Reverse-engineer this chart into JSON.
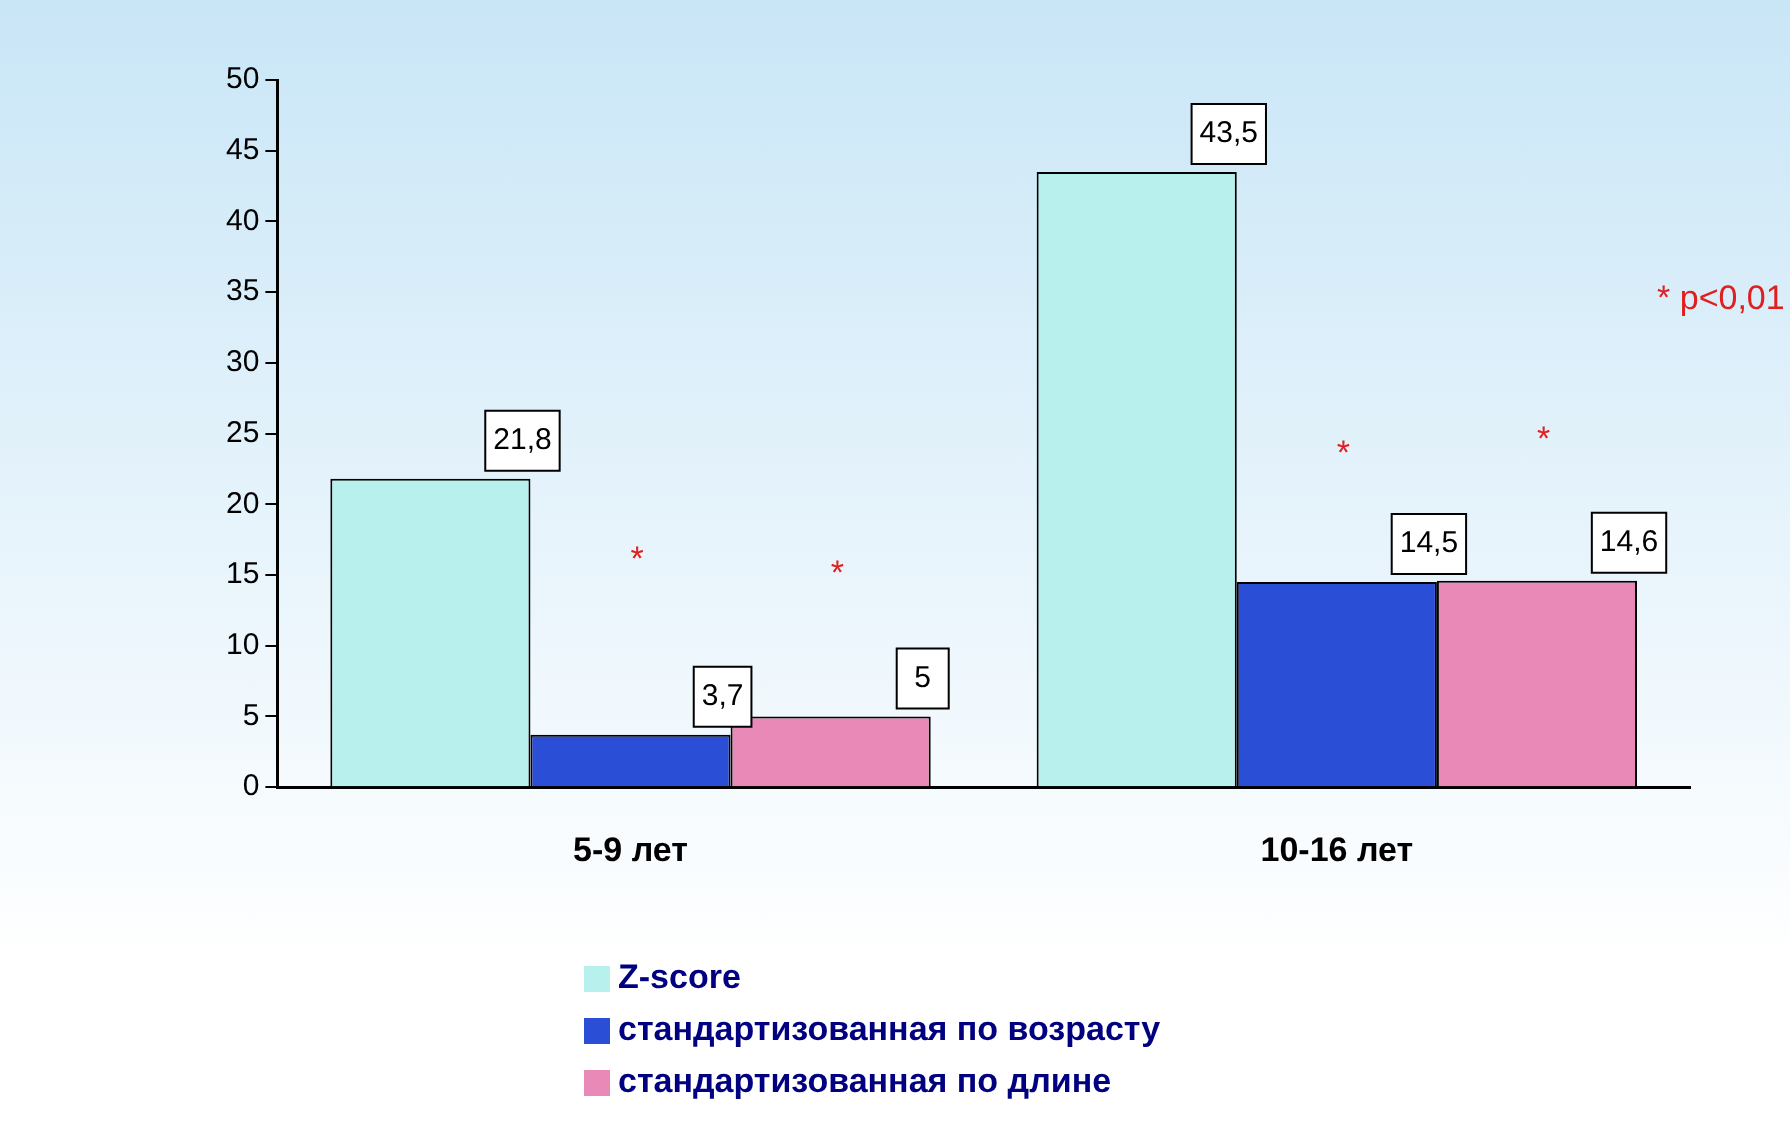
{
  "chart_data": {
    "type": "bar",
    "categories": [
      "5-9 лет",
      "10-16 лет"
    ],
    "series": [
      {
        "name": "Z-score",
        "color": "#b8f0ee",
        "values": [
          21.8,
          43.5
        ],
        "value_labels": [
          "21,8",
          "43,5"
        ]
      },
      {
        "name": "стандартизованная по возрасту",
        "color": "#2a4fd6",
        "values": [
          3.7,
          14.5
        ],
        "value_labels": [
          "3,7",
          "14,5"
        ]
      },
      {
        "name": "стандартизованная по длине",
        "color": "#e889b8",
        "values": [
          5,
          14.6
        ],
        "value_labels": [
          "5",
          "14,6"
        ]
      }
    ],
    "ylim": [
      0,
      50
    ],
    "yticks": [
      0,
      5,
      10,
      15,
      20,
      25,
      30,
      35,
      40,
      45,
      50
    ],
    "grid": false,
    "legend": "bottom",
    "annotations": [
      "*",
      "*",
      "*",
      "*",
      "* p<0,01"
    ]
  }
}
